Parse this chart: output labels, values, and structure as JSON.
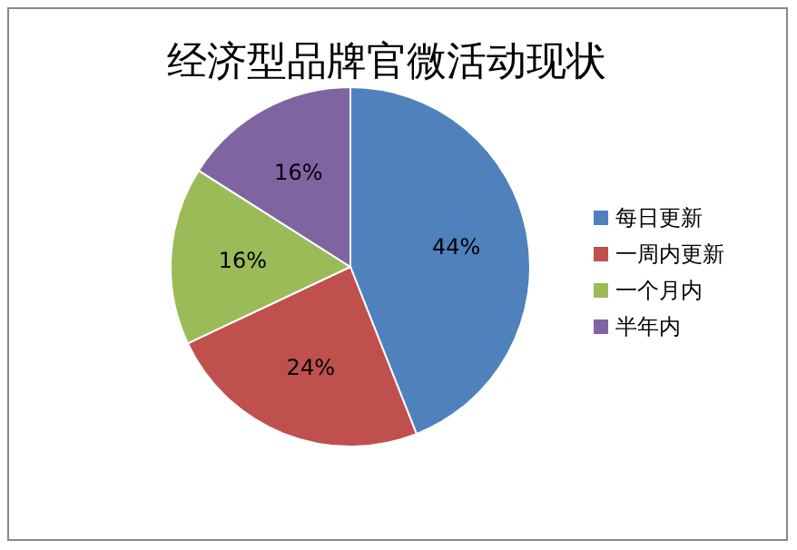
{
  "chart_data": {
    "type": "pie",
    "title": "经济型品牌官微活动现状",
    "categories": [
      "每日更新",
      "一周内更新",
      "一个月内",
      "半年内"
    ],
    "values": [
      44,
      24,
      16,
      16
    ],
    "colors": [
      "#4f81bd",
      "#c0504d",
      "#9bbb59",
      "#8064a2"
    ],
    "value_labels": [
      "44%",
      "24%",
      "16%",
      "16%"
    ],
    "legend": "right"
  }
}
